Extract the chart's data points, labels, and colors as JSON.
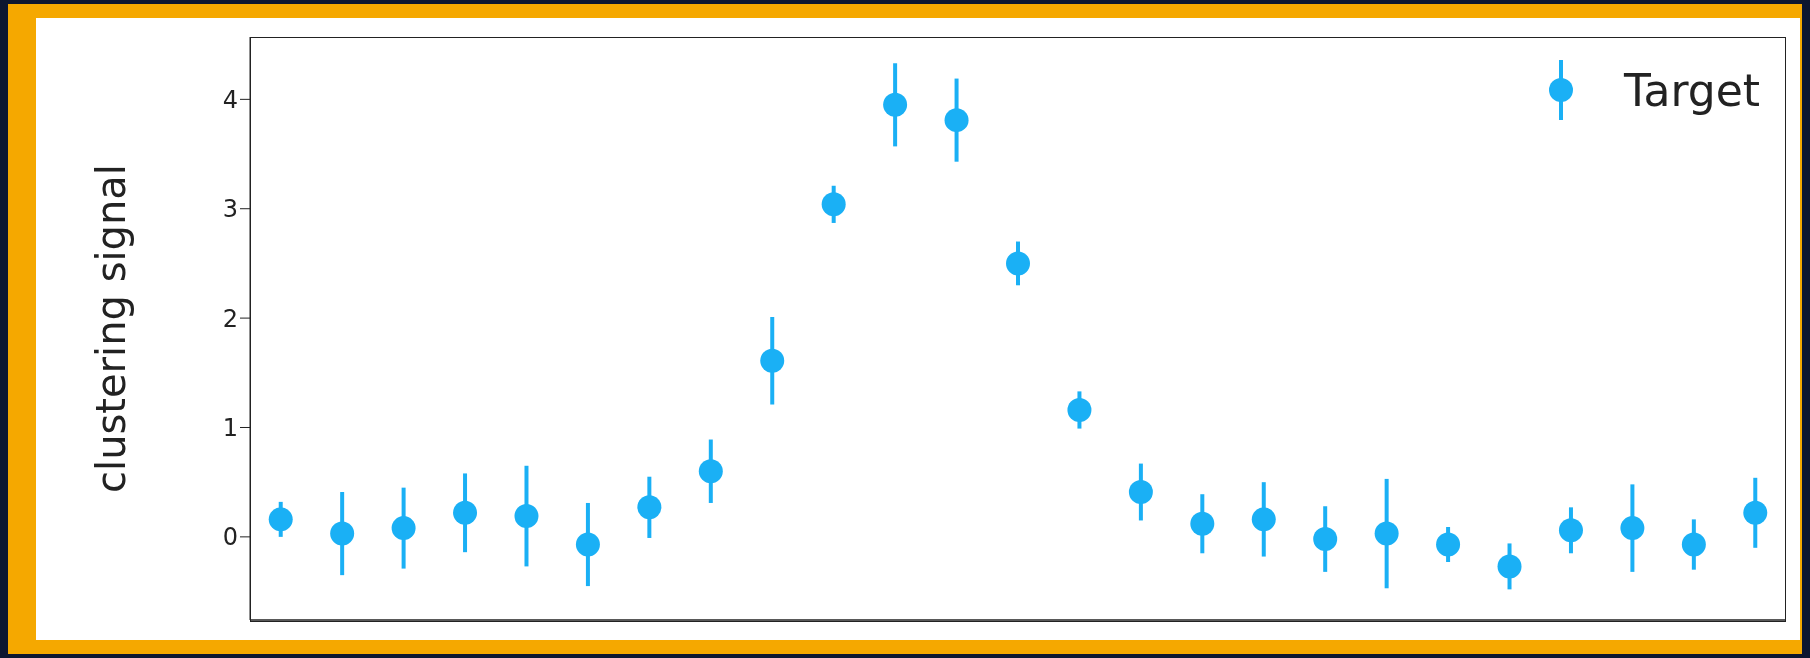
{
  "chart_data": {
    "type": "scatter",
    "ylabel": "clustering signal",
    "categories": [
      null,
      null,
      null,
      null,
      null,
      null,
      null,
      null,
      null,
      null,
      null,
      null,
      null,
      null,
      null,
      null,
      null,
      null,
      null,
      null,
      null,
      null,
      null,
      null,
      null
    ],
    "series": [
      {
        "name": "Target",
        "color": "#1ab0f5",
        "values": [
          0.16,
          0.03,
          0.08,
          0.22,
          0.19,
          -0.07,
          0.27,
          0.6,
          1.61,
          3.04,
          3.95,
          3.81,
          2.5,
          1.16,
          0.41,
          0.12,
          0.16,
          -0.02,
          0.03,
          -0.07,
          -0.27,
          0.06,
          0.08,
          -0.07,
          0.22
        ],
        "errors": [
          0.16,
          0.38,
          0.37,
          0.36,
          0.46,
          0.38,
          0.28,
          0.29,
          0.4,
          0.17,
          0.38,
          0.38,
          0.2,
          0.17,
          0.26,
          0.27,
          0.34,
          0.3,
          0.5,
          0.16,
          0.21,
          0.21,
          0.4,
          0.23,
          0.32
        ]
      }
    ],
    "ylim": [
      -0.76,
      4.57
    ],
    "yticks": [
      0,
      1,
      2,
      3,
      4
    ],
    "tick_labels": "y",
    "marker": "circle",
    "legend": "top right"
  }
}
